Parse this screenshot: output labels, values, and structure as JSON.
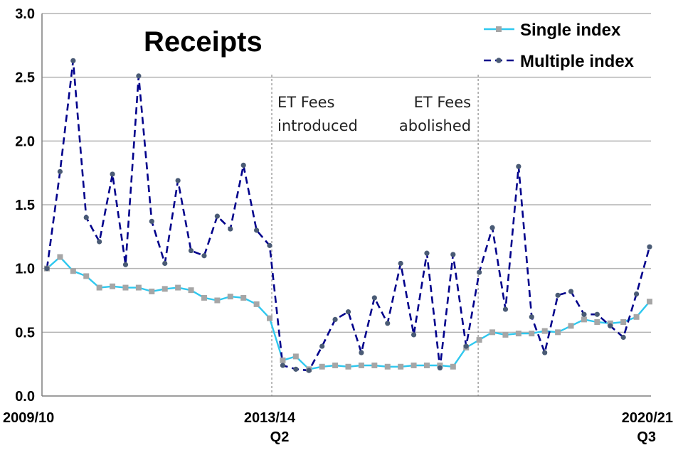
{
  "chart_data": {
    "type": "line",
    "title": "Receipts",
    "xlabel": "",
    "ylabel": "",
    "ylim": [
      0,
      3.0
    ],
    "yticks": [
      "0.0",
      "0.5",
      "1.0",
      "1.5",
      "2.0",
      "2.5",
      "3.0"
    ],
    "grid": "horizontal",
    "legend_position": "top-right",
    "x_tick_labels": [
      {
        "index": 0,
        "line1": "2009/10",
        "line2": ""
      },
      {
        "index": 17,
        "line1": "2013/14",
        "line2": "Q2"
      },
      {
        "index": 46,
        "line1": "2020/21",
        "line2": "Q3"
      }
    ],
    "annotations": [
      {
        "at_index": 17,
        "lines": [
          "ET Fees",
          "introduced"
        ],
        "align": "start"
      },
      {
        "at_index": 32.7,
        "lines": [
          "ET Fees",
          "abolished"
        ],
        "align": "end"
      }
    ],
    "series": [
      {
        "name": "Single index",
        "color": "#2ec8ef",
        "marker_color": "#a6a6a6",
        "marker": "square",
        "dash": "solid",
        "values": [
          1.0,
          1.09,
          0.98,
          0.94,
          0.85,
          0.86,
          0.85,
          0.85,
          0.82,
          0.84,
          0.85,
          0.83,
          0.77,
          0.75,
          0.78,
          0.77,
          0.72,
          0.61,
          0.28,
          0.31,
          0.21,
          0.23,
          0.24,
          0.23,
          0.24,
          0.24,
          0.23,
          0.23,
          0.24,
          0.24,
          0.24,
          0.23,
          0.38,
          0.44,
          0.5,
          0.48,
          0.49,
          0.49,
          0.51,
          0.5,
          0.55,
          0.6,
          0.58,
          0.57,
          0.58,
          0.62,
          0.74
        ]
      },
      {
        "name": "Multiple index",
        "color": "#00008b",
        "marker_color": "#4a5b75",
        "marker": "circle",
        "dash": "dashed",
        "values": [
          1.0,
          1.76,
          2.63,
          1.4,
          1.21,
          1.74,
          1.03,
          2.51,
          1.37,
          1.04,
          1.69,
          1.14,
          1.1,
          1.41,
          1.31,
          1.81,
          1.3,
          1.18,
          0.24,
          0.21,
          0.2,
          0.39,
          0.6,
          0.66,
          0.34,
          0.77,
          0.57,
          1.04,
          0.48,
          1.12,
          0.22,
          1.11,
          0.39,
          0.97,
          1.32,
          0.68,
          1.8,
          0.62,
          0.34,
          0.79,
          0.82,
          0.64,
          0.64,
          0.55,
          0.46,
          0.8,
          1.17
        ]
      }
    ]
  }
}
